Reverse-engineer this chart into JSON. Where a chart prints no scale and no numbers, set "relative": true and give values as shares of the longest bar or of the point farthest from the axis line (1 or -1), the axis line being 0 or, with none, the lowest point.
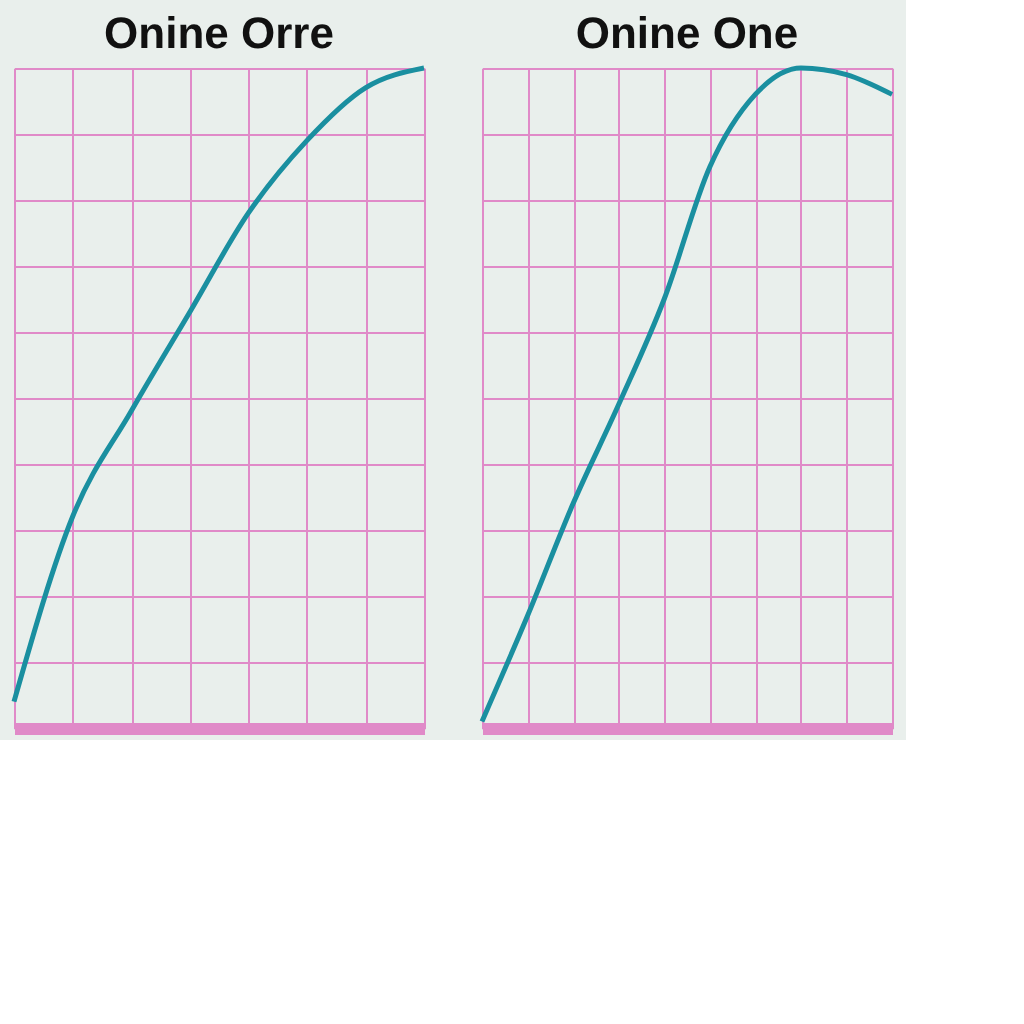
{
  "chart_data": [
    {
      "type": "line",
      "title": "Onine Orre",
      "relative": true,
      "grid": true,
      "categories": [
        null,
        null,
        null,
        null,
        null,
        null,
        null,
        null
      ],
      "series": [
        {
          "color": "#1a8fa0",
          "values": [
            0.04,
            0.32,
            0.48,
            0.63,
            0.78,
            0.89,
            0.97,
            1
          ]
        }
      ]
    },
    {
      "type": "line",
      "title": "Onine One",
      "relative": true,
      "grid": true,
      "categories": [
        null,
        null,
        null,
        null,
        null,
        null,
        null,
        null,
        null,
        null
      ],
      "series": [
        {
          "color": "#1a8fa0",
          "values": [
            0.01,
            0.17,
            0.34,
            0.49,
            0.65,
            0.85,
            0.96,
            1,
            0.99,
            0.96
          ]
        }
      ]
    }
  ]
}
